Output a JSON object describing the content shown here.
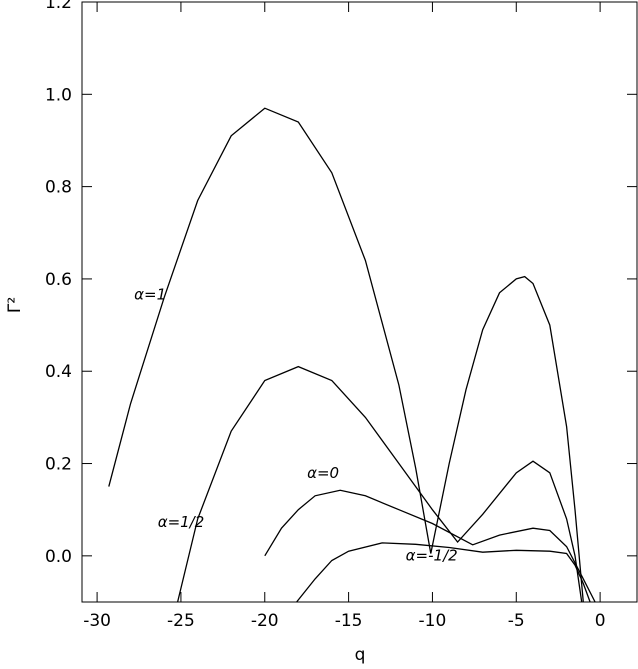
{
  "chart_data": {
    "type": "line",
    "xlabel": "q",
    "ylabel": "Γ²",
    "xlim": [
      -30.9,
      2.2
    ],
    "ylim": [
      -0.1,
      1.2
    ],
    "xticks": [
      -30,
      -25,
      -20,
      -15,
      -10,
      -5,
      0
    ],
    "yticks": [
      {
        "value": 0,
        "label": "0.0"
      },
      {
        "value": 0.2,
        "label": "0.2"
      },
      {
        "value": 0.4,
        "label": "0.4"
      },
      {
        "value": 0.6,
        "label": "0.6"
      },
      {
        "value": 0.8,
        "label": "0.8"
      },
      {
        "value": 1,
        "label": "1.0"
      },
      {
        "value": 1.2,
        "label": "1.2"
      }
    ],
    "series": [
      {
        "name": "α=1",
        "color": "#000000",
        "x": [
          -29.3,
          -28,
          -26,
          -24,
          -22,
          -20,
          -18,
          -16,
          -14,
          -12,
          -11,
          -10.1,
          -9,
          -8,
          -7,
          -6,
          -5,
          -4.5,
          -4,
          -3,
          -2,
          -1.5,
          -1
        ],
        "values": [
          0.15,
          0.33,
          0.56,
          0.77,
          0.91,
          0.97,
          0.94,
          0.83,
          0.64,
          0.37,
          0.19,
          0.005,
          0.2,
          0.36,
          0.49,
          0.57,
          0.6,
          0.605,
          0.59,
          0.5,
          0.28,
          0.1,
          -0.1
        ]
      },
      {
        "name": "α=1/2",
        "color": "#000000",
        "x": [
          -25.2,
          -24,
          -22,
          -20,
          -18,
          -16,
          -14,
          -12,
          -10,
          -8.5,
          -7,
          -5,
          -4,
          -3,
          -2,
          -1.5,
          -1.1
        ],
        "values": [
          -0.1,
          0.08,
          0.27,
          0.38,
          0.41,
          0.38,
          0.3,
          0.2,
          0.1,
          0.03,
          0.09,
          0.18,
          0.205,
          0.18,
          0.08,
          0,
          -0.1
        ]
      },
      {
        "name": "α=0",
        "color": "#000000",
        "x": [
          -20,
          -19,
          -18,
          -17,
          -15.5,
          -14,
          -12,
          -10,
          -7.6,
          -6,
          -4,
          -3,
          -2,
          -1,
          -0.3
        ],
        "values": [
          0,
          0.06,
          0.1,
          0.13,
          0.142,
          0.13,
          0.1,
          0.07,
          0.024,
          0.045,
          0.06,
          0.055,
          0.02,
          -0.05,
          -0.1
        ]
      },
      {
        "name": "α=-1/2",
        "color": "#000000",
        "x": [
          -18.1,
          -17,
          -16,
          -15,
          -13,
          -11,
          -9,
          -7,
          -5,
          -3,
          -2,
          -1.5,
          -1,
          -0.6
        ],
        "values": [
          -0.1,
          -0.05,
          -0.01,
          0.01,
          0.028,
          0.025,
          0.018,
          0.008,
          0.012,
          0.01,
          0.005,
          -0.02,
          -0.06,
          -0.1
        ]
      }
    ]
  }
}
